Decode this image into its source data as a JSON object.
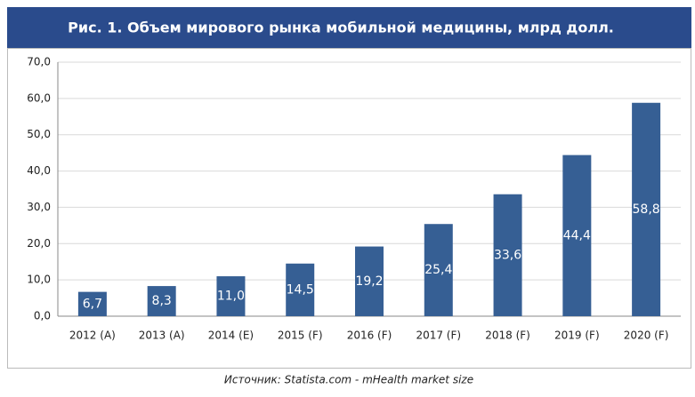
{
  "chart_data": {
    "type": "bar",
    "title": "Рис. 1. Объем мирового рынка мобильной медицины, млрд долл.",
    "source": "Источник: Statista.com - mHealth market size",
    "categories": [
      "2012 (A)",
      "2013 (A)",
      "2014 (E)",
      "2015 (F)",
      "2016 (F)",
      "2017 (F)",
      "2018 (F)",
      "2019 (F)",
      "2020 (F)"
    ],
    "values": [
      6.7,
      8.3,
      11.0,
      14.5,
      19.2,
      25.4,
      33.6,
      44.4,
      58.8
    ],
    "value_labels": [
      "6,7",
      "8,3",
      "11,0",
      "14,5",
      "19,2",
      "25,4",
      "33,6",
      "44,4",
      "58,8"
    ],
    "color": "#365f94",
    "ylim": [
      0,
      70
    ],
    "yticks": [
      {
        "value": 0,
        "label": "0,0"
      },
      {
        "value": 10,
        "label": "10,0"
      },
      {
        "value": 20,
        "label": "20,0"
      },
      {
        "value": 30,
        "label": "30,0"
      },
      {
        "value": 40,
        "label": "40,0"
      },
      {
        "value": 50,
        "label": "50,0"
      },
      {
        "value": 60,
        "label": "60,0"
      },
      {
        "value": 70,
        "label": "70,0"
      }
    ],
    "grid": true
  }
}
